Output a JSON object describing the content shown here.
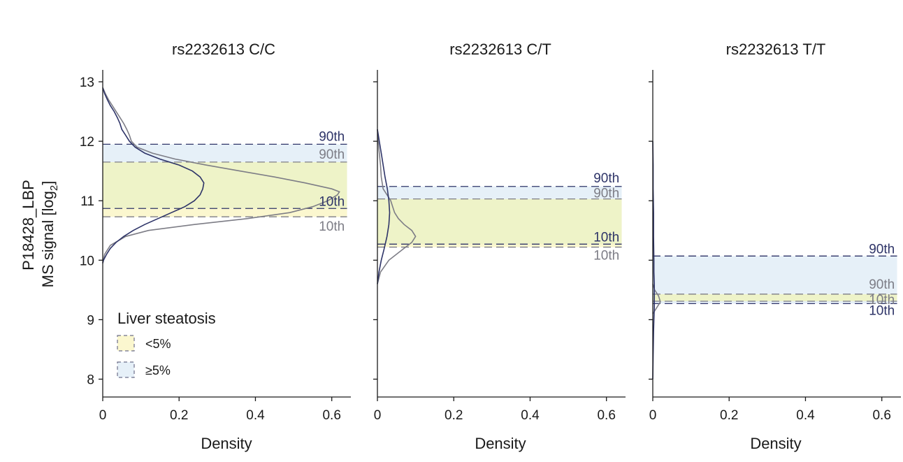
{
  "chart_data": {
    "type": "area",
    "ylabel_line1": "P18428_LBP",
    "ylabel_line2": "MS signal [log",
    "ylabel_sub": "2",
    "ylabel_close": "]",
    "ylim": [
      7.7,
      13.2
    ],
    "yticks": [
      8,
      9,
      10,
      11,
      12,
      13
    ],
    "xticks": [
      0,
      0.2,
      0.4,
      0.6
    ],
    "xtick_labels": [
      "0",
      "0.2",
      "0.4",
      "0.6"
    ],
    "xlabel": "Density",
    "colors": {
      "low": "#7d7d86",
      "high": "#2e3468",
      "band_low": "#eef3c8",
      "band_high": "#e6f0f8"
    },
    "legend": {
      "title": "Liver steatosis",
      "items": [
        {
          "label": "<5%",
          "color": "#fbf7cf"
        },
        {
          "label": "≥5%",
          "color": "#e6f0f8"
        }
      ]
    },
    "panels": [
      {
        "title": "rs2232613 C/C",
        "xlim": [
          0,
          0.65
        ],
        "low": {
          "p10": 10.73,
          "p90": 11.65,
          "label90": "90th",
          "label10": "10th"
        },
        "high": {
          "p10": 10.87,
          "p90": 11.95,
          "label90": "90th",
          "label10": "10th"
        },
        "density_low": {
          "y": [
            9.95,
            10.1,
            10.25,
            10.4,
            10.5,
            10.6,
            10.7,
            10.8,
            10.9,
            11.0,
            11.1,
            11.15,
            11.2,
            11.3,
            11.4,
            11.5,
            11.6,
            11.7,
            11.8,
            11.9,
            12.0,
            12.1,
            12.2,
            12.3,
            12.4,
            12.5,
            12.6,
            12.7,
            12.8,
            12.9
          ],
          "x": [
            0.0,
            0.005,
            0.02,
            0.06,
            0.12,
            0.24,
            0.38,
            0.49,
            0.55,
            0.59,
            0.615,
            0.62,
            0.6,
            0.53,
            0.45,
            0.36,
            0.27,
            0.19,
            0.13,
            0.09,
            0.075,
            0.07,
            0.063,
            0.055,
            0.045,
            0.035,
            0.025,
            0.015,
            0.007,
            0.0
          ]
        },
        "density_high": {
          "y": [
            9.95,
            10.0,
            10.1,
            10.2,
            10.3,
            10.4,
            10.5,
            10.6,
            10.7,
            10.8,
            10.9,
            11.0,
            11.1,
            11.2,
            11.3,
            11.4,
            11.5,
            11.6,
            11.7,
            11.8,
            11.9,
            12.0,
            12.1,
            12.2,
            12.3,
            12.4,
            12.5,
            12.6,
            12.7,
            12.8,
            12.9
          ],
          "x": [
            0.0,
            0.002,
            0.01,
            0.02,
            0.035,
            0.055,
            0.08,
            0.11,
            0.145,
            0.18,
            0.215,
            0.24,
            0.255,
            0.262,
            0.265,
            0.255,
            0.235,
            0.2,
            0.15,
            0.11,
            0.085,
            0.07,
            0.06,
            0.05,
            0.045,
            0.038,
            0.03,
            0.02,
            0.012,
            0.005,
            0.0
          ]
        }
      },
      {
        "title": "rs2232613 C/T",
        "xlim": [
          0,
          0.65
        ],
        "low": {
          "p10": 10.22,
          "p90": 11.03,
          "label90": "90th",
          "label10": "10th"
        },
        "high": {
          "p10": 10.27,
          "p90": 11.24,
          "label90": "90th",
          "label10": "10th"
        },
        "density_low": {
          "y": [
            9.6,
            9.8,
            10.0,
            10.2,
            10.3,
            10.4,
            10.5,
            10.6,
            10.7,
            10.8,
            10.9,
            11.0,
            11.1,
            11.2,
            11.4,
            11.6,
            11.8,
            12.0,
            12.2
          ],
          "x": [
            0.0,
            0.008,
            0.03,
            0.07,
            0.09,
            0.1,
            0.09,
            0.07,
            0.055,
            0.045,
            0.04,
            0.035,
            0.025,
            0.015,
            0.01,
            0.008,
            0.005,
            0.002,
            0.0
          ]
        },
        "density_high": {
          "y": [
            9.6,
            9.8,
            10.0,
            10.2,
            10.4,
            10.6,
            10.8,
            11.0,
            11.2,
            11.4,
            11.6,
            11.8,
            12.0,
            12.2
          ],
          "x": [
            0.0,
            0.004,
            0.01,
            0.018,
            0.025,
            0.03,
            0.032,
            0.03,
            0.026,
            0.02,
            0.015,
            0.01,
            0.005,
            0.0
          ]
        }
      },
      {
        "title": "rs2232613 T/T",
        "xlim": [
          0,
          0.65
        ],
        "low": {
          "p10": 9.31,
          "p90": 9.43,
          "label90": "90th",
          "label10": "10th"
        },
        "high": {
          "p10": 9.27,
          "p90": 10.07,
          "label90": "90th",
          "label10": "10th"
        },
        "density_low": {
          "y": [
            9.1,
            9.2,
            9.3,
            9.4,
            9.5,
            9.6
          ],
          "x": [
            0.0,
            0.01,
            0.02,
            0.015,
            0.005,
            0.0
          ]
        },
        "density_high": {
          "y": [
            8.0,
            8.4,
            8.8,
            9.0,
            9.2,
            9.4,
            9.6,
            9.8,
            10.0,
            10.4,
            10.8,
            11.2,
            11.6,
            12.0
          ],
          "x": [
            0.0,
            0.001,
            0.002,
            0.003,
            0.004,
            0.004,
            0.004,
            0.003,
            0.003,
            0.002,
            0.002,
            0.001,
            0.001,
            0.0
          ]
        }
      }
    ]
  }
}
